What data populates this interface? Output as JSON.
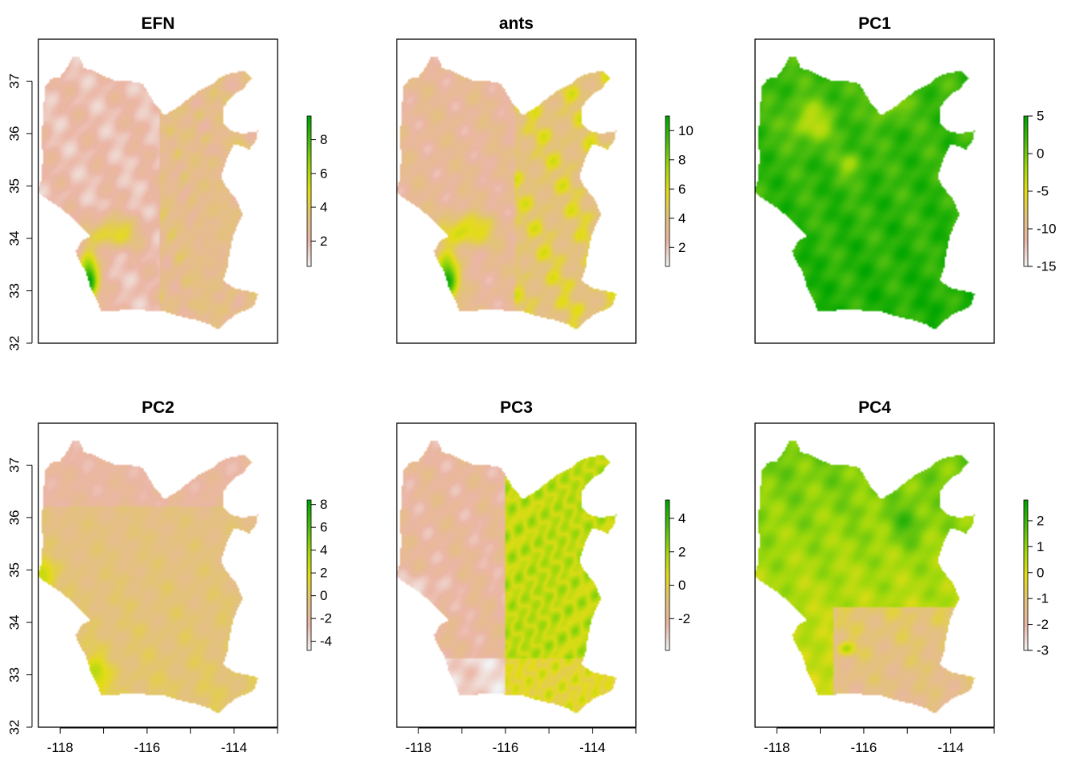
{
  "chart_data": [
    {
      "type": "heatmap",
      "title": "EFN",
      "legend": {
        "ticks": [
          2,
          4,
          6,
          8
        ],
        "range": [
          0.5,
          9.4
        ]
      },
      "x_ticks": [],
      "y_ticks": [
        32,
        33,
        34,
        35,
        36,
        37
      ],
      "xlim": [
        -118.5,
        -113
      ],
      "ylim": [
        32,
        37.8
      ],
      "field": "efn"
    },
    {
      "type": "heatmap",
      "title": "ants",
      "legend": {
        "ticks": [
          2,
          4,
          6,
          8,
          10
        ],
        "range": [
          0.7,
          11
        ]
      },
      "x_ticks": [],
      "y_ticks": [],
      "xlim": [
        -118.5,
        -113
      ],
      "ylim": [
        32,
        37.8
      ],
      "field": "ants"
    },
    {
      "type": "heatmap",
      "title": "PC1",
      "legend": {
        "ticks": [
          -15,
          -10,
          -5,
          0,
          5
        ],
        "range": [
          -15,
          5
        ]
      },
      "x_ticks": [],
      "y_ticks": [],
      "xlim": [
        -118.5,
        -113
      ],
      "ylim": [
        32,
        37.8
      ],
      "field": "pc1"
    },
    {
      "type": "heatmap",
      "title": "PC2",
      "legend": {
        "ticks": [
          -4,
          -2,
          0,
          2,
          4,
          6,
          8
        ],
        "range": [
          -4.8,
          8.4
        ]
      },
      "x_ticks": [
        -118,
        -116,
        -114
      ],
      "y_ticks": [
        32,
        33,
        34,
        35,
        36,
        37
      ],
      "xlim": [
        -118.5,
        -113
      ],
      "ylim": [
        32,
        37.8
      ],
      "field": "pc2"
    },
    {
      "type": "heatmap",
      "title": "PC3",
      "legend": {
        "ticks": [
          -2,
          0,
          2,
          4
        ],
        "range": [
          -3.9,
          5.1
        ]
      },
      "x_ticks": [
        -118,
        -116,
        -114
      ],
      "y_ticks": [],
      "xlim": [
        -118.5,
        -113
      ],
      "ylim": [
        32,
        37.8
      ],
      "field": "pc3"
    },
    {
      "type": "heatmap",
      "title": "PC4",
      "legend": {
        "ticks": [
          -3,
          -2,
          -1,
          0,
          1,
          2
        ],
        "range": [
          -3,
          2.8
        ]
      },
      "x_ticks": [
        -118,
        -116,
        -114
      ],
      "y_ticks": [],
      "xlim": [
        -118.5,
        -113
      ],
      "ylim": [
        32,
        37.8
      ],
      "field": "pc4"
    }
  ],
  "colors": {
    "ramp": [
      "#f2f2f2",
      "#ebb6a6",
      "#e3c37a",
      "#e4dc17",
      "#9ed80b",
      "#4bbd0f",
      "#00a600"
    ],
    "axis": "#000000",
    "background": "#ffffff"
  }
}
